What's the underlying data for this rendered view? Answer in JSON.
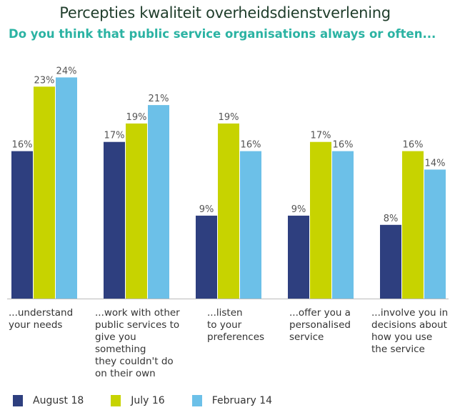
{
  "title": "Percepties kwaliteit overheidsdienstverlening",
  "subtitle": "Do you think that public service organisations always or often...",
  "colors": {
    "series": [
      "#2e3f7f",
      "#c7d300",
      "#6cc0e8"
    ],
    "axis": "#bbbbbb",
    "value_label": "#555555"
  },
  "chart_data": {
    "type": "bar",
    "title": "Do you think that public service organisations always or often...",
    "xlabel": "",
    "ylabel": "",
    "ylim": [
      0,
      26
    ],
    "grid": false,
    "legend_position": "bottom",
    "value_suffix": "%",
    "categories": [
      "...understand\nyour needs",
      "...work with other\npublic services to\ngive you something\nthey couldn't do\non their own",
      "...listen\nto your\npreferences",
      "...offer you a\npersonalised\nservice",
      "...involve you in\ndecisions about\nhow you use\nthe service"
    ],
    "series": [
      {
        "name": "August 18",
        "values": [
          16,
          17,
          9,
          9,
          8
        ]
      },
      {
        "name": "July 16",
        "values": [
          23,
          19,
          19,
          17,
          16
        ]
      },
      {
        "name": "February 14",
        "values": [
          24,
          21,
          16,
          16,
          14
        ]
      }
    ]
  }
}
